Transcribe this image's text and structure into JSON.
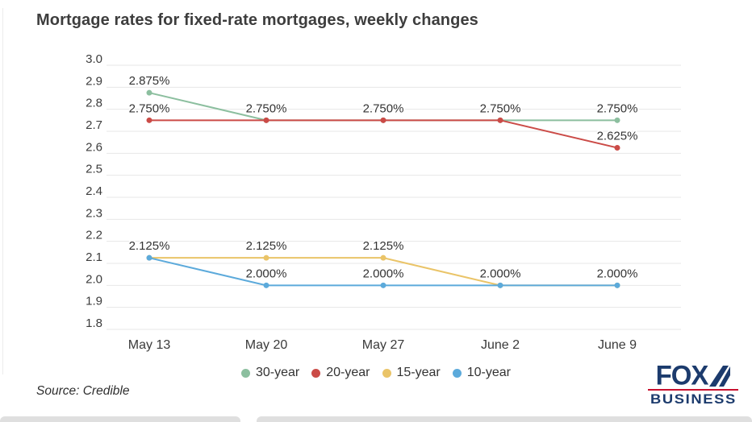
{
  "title": "Mortgage rates for fixed-rate mortgages, weekly changes",
  "source_note": "Source: Credible",
  "branding": {
    "fox": "FOX",
    "business": "BUSINESS",
    "navy": "#1c3b6d",
    "red": "#c8102e"
  },
  "chart_data": {
    "type": "line",
    "title": "Mortgage rates for fixed-rate mortgages, weekly changes",
    "categories": [
      "May 13",
      "May 20",
      "May 27",
      "June 2",
      "June 9"
    ],
    "series": [
      {
        "name": "30-year",
        "color": "#8CBF9F",
        "values": [
          2.875,
          2.75,
          2.75,
          2.75,
          2.75
        ]
      },
      {
        "name": "20-year",
        "color": "#CB4B47",
        "values": [
          2.75,
          2.75,
          2.75,
          2.75,
          2.625
        ]
      },
      {
        "name": "15-year",
        "color": "#EAC468",
        "values": [
          2.125,
          2.125,
          2.125,
          2.0,
          2.0
        ]
      },
      {
        "name": "10-year",
        "color": "#5CAADB",
        "values": [
          2.125,
          2.0,
          2.0,
          2.0,
          2.0
        ]
      }
    ],
    "ylim": [
      1.8,
      3.0
    ],
    "ytick_step": 0.1,
    "ytick_labels": [
      "3.0",
      "2.9",
      "2.8",
      "2.7",
      "2.6",
      "2.5",
      "2.4",
      "2.3",
      "2.2",
      "2.1",
      "2.0",
      "1.9",
      "1.8"
    ],
    "point_label_suffix": "%",
    "point_label_decimals": 3,
    "grid": "horizontal",
    "grid_color": "#e7e7e7",
    "label_color": "#333333",
    "legend_position": "bottom-center"
  }
}
